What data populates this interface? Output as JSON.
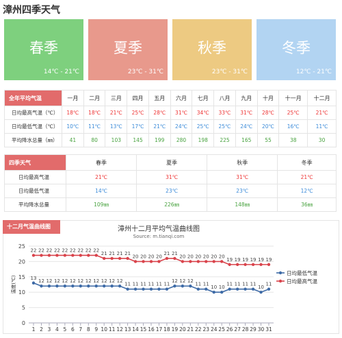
{
  "page": {
    "title": "漳州四季天气"
  },
  "seasons": [
    {
      "name": "春季",
      "range": "14℃ - 21℃",
      "color": "#7ed07e"
    },
    {
      "name": "夏季",
      "range": "23℃ - 31℃",
      "color": "#e8998c"
    },
    {
      "name": "秋季",
      "range": "23℃ - 31℃",
      "color": "#edca82"
    },
    {
      "name": "冬季",
      "range": "12℃ - 21℃",
      "color": "#b2d4f2"
    }
  ],
  "annual": {
    "header": "全年平均气温",
    "months": [
      "一月",
      "二月",
      "三月",
      "四月",
      "五月",
      "六月",
      "七月",
      "八月",
      "九月",
      "十月",
      "十一月",
      "十二月"
    ],
    "rows": [
      {
        "label": "日均最高气温（℃）",
        "values": [
          "18℃",
          "18℃",
          "21℃",
          "25℃",
          "28℃",
          "31℃",
          "34℃",
          "33℃",
          "31℃",
          "28℃",
          "25℃",
          "21℃"
        ]
      },
      {
        "label": "日均最低气温（℃）",
        "values": [
          "10℃",
          "11℃",
          "13℃",
          "17℃",
          "21℃",
          "24℃",
          "25℃",
          "25℃",
          "24℃",
          "20℃",
          "16℃",
          "11℃"
        ]
      },
      {
        "label": "平均降水总量（㎜）",
        "values": [
          "41",
          "80",
          "103",
          "145",
          "199",
          "280",
          "198",
          "225",
          "165",
          "55",
          "38",
          "30"
        ]
      }
    ]
  },
  "seasonal": {
    "header": "四季天气",
    "columns": [
      "春季",
      "夏季",
      "秋季",
      "冬季"
    ],
    "rows": [
      {
        "label": "日均最高气温",
        "values": [
          "21℃",
          "31℃",
          "31℃",
          "21℃"
        ]
      },
      {
        "label": "日均最低气温",
        "values": [
          "14℃",
          "23℃",
          "23℃",
          "12℃"
        ]
      },
      {
        "label": "平均降水总量",
        "values": [
          "109㎜",
          "226㎜",
          "148㎜",
          "36㎜"
        ]
      }
    ]
  },
  "chart_section": {
    "header": "十二月气温曲线图"
  },
  "chart_data": {
    "type": "line",
    "title": "漳州十二月平均气温曲线图",
    "subtitle": "Source: m.tianqi.com",
    "ylabel": "温度(℃)",
    "ylim": [
      0,
      25
    ],
    "yticks": [
      0,
      5,
      10,
      15,
      20,
      25
    ],
    "grid": true,
    "legend": "right",
    "x": [
      1,
      2,
      3,
      4,
      5,
      6,
      7,
      8,
      9,
      10,
      11,
      12,
      13,
      14,
      15,
      16,
      17,
      18,
      19,
      20,
      21,
      22,
      23,
      24,
      25,
      26,
      27,
      28,
      29,
      30,
      31
    ],
    "series": [
      {
        "name": "日均最低气温",
        "color": "#3d6aa6",
        "values": [
          13,
          12,
          12,
          12,
          12,
          12,
          12,
          12,
          12,
          12,
          12,
          12,
          11,
          11,
          11,
          11,
          11,
          11,
          12,
          12,
          12,
          11,
          11,
          10,
          10,
          11,
          11,
          11,
          11,
          10,
          11
        ]
      },
      {
        "name": "日均最高气温",
        "color": "#d9434b",
        "values": [
          22,
          22,
          22,
          22,
          22,
          22,
          22,
          22,
          22,
          21,
          21,
          21,
          21,
          20,
          20,
          20,
          20,
          21,
          21,
          20,
          20,
          20,
          20,
          20,
          20,
          19,
          19,
          19,
          19,
          19,
          19
        ]
      }
    ]
  }
}
